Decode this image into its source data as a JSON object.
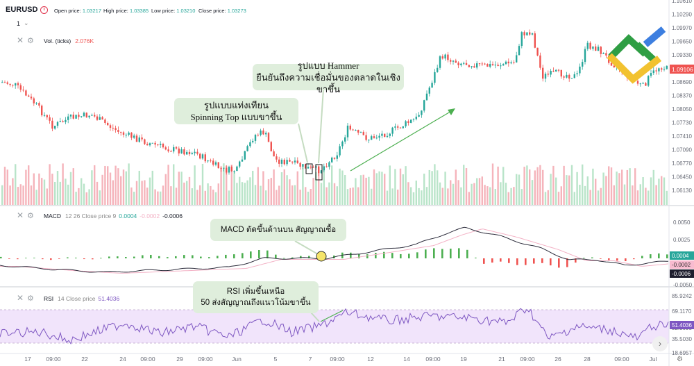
{
  "header": {
    "symbol": "EURUSD",
    "open_label": "Open price:",
    "open_value": "1.03217",
    "high_label": "High price:",
    "high_value": "1.03385",
    "low_label": "Low price:",
    "low_value": "1.03210",
    "close_label": "Close price:",
    "close_value": "1.03273",
    "timeframe": "1",
    "symbol_icon": "clock-icon",
    "timeframe_icon": "chevron-down-icon"
  },
  "volume": {
    "label": "Vol. (ticks)",
    "value": "2.076K",
    "value_color": "#ef5350"
  },
  "macd": {
    "label": "MACD",
    "params": "12 26 Close price 9",
    "v1": "0.0004",
    "v2": "-0.0002",
    "v3": "-0.0006"
  },
  "rsi": {
    "label": "RSI",
    "params": "14 Close price",
    "value": "51.4036"
  },
  "price_axis": {
    "ticks": [
      "1.10610",
      "1.10290",
      "1.09970",
      "1.09650",
      "1.09330",
      "1.08970",
      "1.08690",
      "1.08370",
      "1.08050",
      "1.07730",
      "1.07410",
      "1.07090",
      "1.06770",
      "1.06450",
      "1.06130"
    ],
    "current": "1.09106",
    "current_color": "#ef5350"
  },
  "macd_axis": {
    "ticks": [
      "0.0050",
      "0.0025",
      "0.0000",
      "-0.0025",
      "-0.0050"
    ],
    "badges": [
      "0.0004",
      "-0.0002",
      "-0.0006"
    ],
    "badge_colors": [
      "#26a69a",
      "#f8bbd0",
      "#1e1e2e"
    ]
  },
  "rsi_axis": {
    "ticks": [
      "85.9242",
      "69.1170",
      "52.3098",
      "35.5030",
      "18.6957"
    ],
    "badge": "51.4036",
    "badge_color": "#7e57c2"
  },
  "time_axis": [
    "17",
    "09:00",
    "22",
    "24",
    "09:00",
    "29",
    "09:00",
    "Jun",
    "5",
    "7",
    "09:00",
    "12",
    "14",
    "09:00",
    "19",
    "21",
    "09:00",
    "26",
    "28",
    "09:00",
    "Jul"
  ],
  "annotations": {
    "hammer": [
      "รูปแบบ Hammer",
      "ยืนยันถึงความเชื่อมั่นของตลาดในเชิงขาขึ้น"
    ],
    "spinning": [
      "รูปแบบแท่งเทียน",
      "Spinning Top แบบขาขึ้น"
    ],
    "macd": [
      "MACD ตัดขึ้นด้านบน สัญญาณซื้อ"
    ],
    "rsi": [
      "RSI เพิ่มขึ้นเหนือ",
      "50 ส่งสัญญาณถึงแนวโน้มขาขึ้น"
    ]
  },
  "icons": {
    "close": "close-icon",
    "settings": "gear-icon",
    "scroll": "chevron-right-icon",
    "brand": "brand-logo-icon"
  },
  "colors": {
    "up": "#26a69a",
    "down": "#ef5350",
    "up_vol": "#b9e4c9",
    "down_vol": "#f5b4bb",
    "rsi_band": "#f1e4fb",
    "rsi_line": "#7e57c2",
    "macd_line": "#2b2b3a",
    "signal_line": "#f3b1c5",
    "arrow": "#4caf50"
  }
}
